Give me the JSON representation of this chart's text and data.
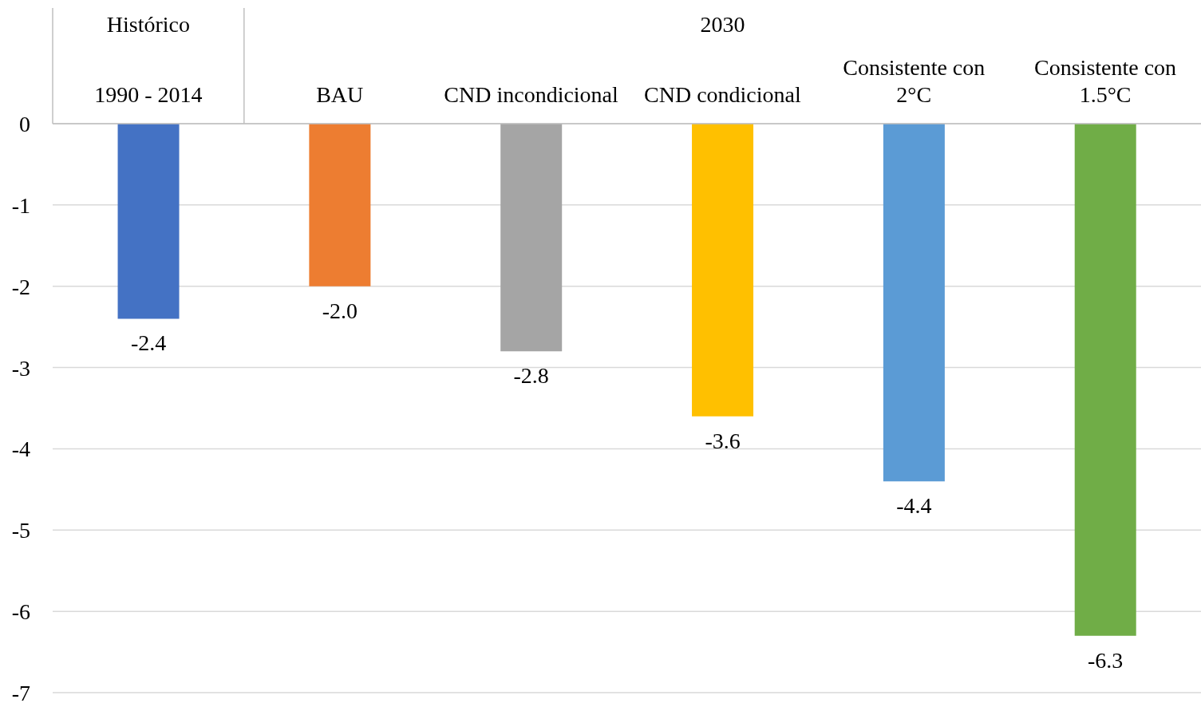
{
  "chart_data": {
    "type": "bar",
    "categories": [
      "1990 - 2014",
      "BAU",
      "CND incondicional",
      "CND condicional",
      "Consistente con 2°C",
      "Consistente con 1.5°C"
    ],
    "values": [
      -2.4,
      -2.0,
      -2.8,
      -3.6,
      -4.4,
      -6.3
    ],
    "colors": [
      "#4472c4",
      "#ed7d31",
      "#a5a5a5",
      "#ffc000",
      "#5b9bd5",
      "#70ad47"
    ],
    "value_labels": [
      "-2.4",
      "-2.0",
      "-2.8",
      "-3.6",
      "-4.4",
      "-6.3"
    ],
    "ylim": [
      -7,
      0
    ],
    "yticks": [
      0,
      -1,
      -2,
      -3,
      -4,
      -5,
      -6,
      -7
    ],
    "grid": "y",
    "annotations": [
      "Histórico",
      "2030"
    ]
  }
}
